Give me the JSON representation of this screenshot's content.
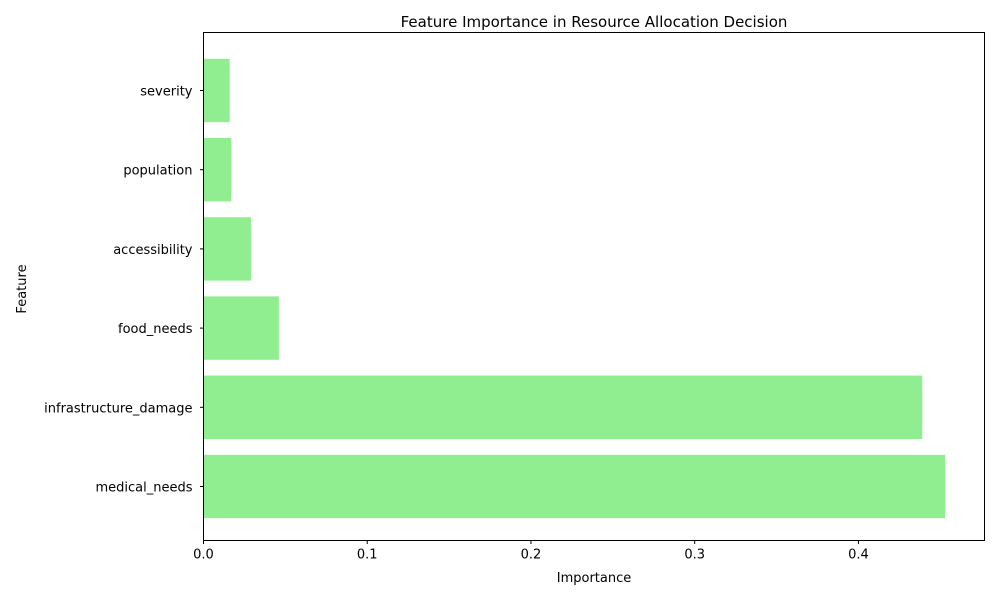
{
  "chart_data": {
    "type": "bar",
    "orientation": "horizontal",
    "title": "Feature Importance in Resource Allocation Decision",
    "xlabel": "Importance",
    "ylabel": "Feature",
    "categories": [
      "medical_needs",
      "infrastructure_damage",
      "food_needs",
      "accessibility",
      "population",
      "severity"
    ],
    "values": [
      0.453,
      0.439,
      0.046,
      0.029,
      0.017,
      0.016
    ],
    "xlim": [
      0,
      0.477
    ],
    "xticks": [
      0.0,
      0.1,
      0.2,
      0.3,
      0.4
    ],
    "xtick_labels": [
      "0.0",
      "0.1",
      "0.2",
      "0.3",
      "0.4"
    ],
    "grid": false,
    "legend": "none",
    "bar_color": "#90ee90"
  }
}
